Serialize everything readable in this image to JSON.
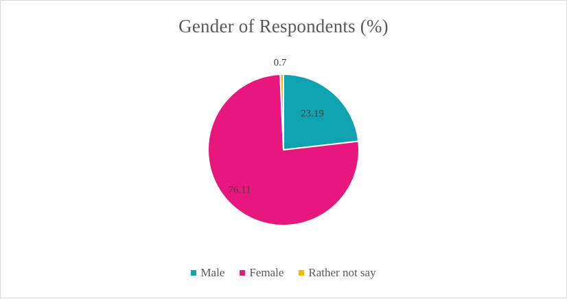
{
  "chart_data": {
    "type": "pie",
    "title": "Gender of Respondents (%)",
    "categories": [
      "Male",
      "Female",
      "Rather not say"
    ],
    "values": [
      23.19,
      76.11,
      0.7
    ],
    "colors": [
      "#0fa3b1",
      "#e8177d",
      "#f5b800"
    ],
    "data_labels": [
      "23.19",
      "76.11",
      "0.7"
    ],
    "legend_position": "bottom",
    "start_angle_deg": 0,
    "direction": "clockwise"
  },
  "legend": {
    "items": [
      {
        "label": "Male",
        "color": "#0fa3b1"
      },
      {
        "label": "Female",
        "color": "#e8177d"
      },
      {
        "label": "Rather not say",
        "color": "#f5b800"
      }
    ]
  }
}
